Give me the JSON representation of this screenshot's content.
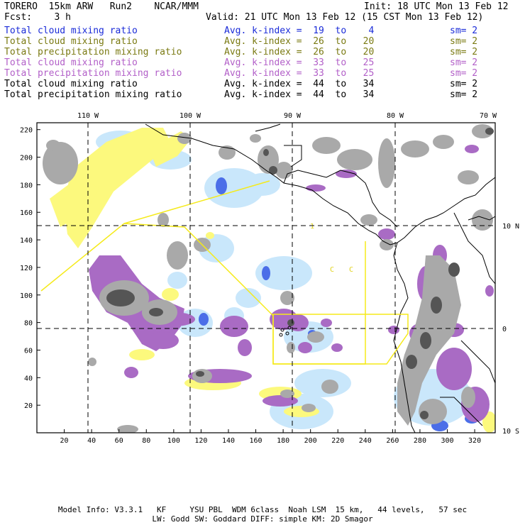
{
  "header": {
    "model_line": "TORERO  15km ARW   Run2    NCAR/MMM",
    "init_line": "Init: 18 UTC Mon 13 Feb 12",
    "fcst_line": "Fcst:    3 h",
    "valid_line": "Valid: 21 UTC Mon 13 Feb 12 (15 CST Mon 13 Feb 12)"
  },
  "legend": [
    {
      "field": "Total cloud mixing ratio",
      "kindex": "Avg. k-index =  19  to    4",
      "sm": "sm= 2",
      "color": "#1a2bd8"
    },
    {
      "field": "Total cloud mixing ratio",
      "kindex": "Avg. k-index =  26  to   20",
      "sm": "sm= 2",
      "color": "#7a7a12"
    },
    {
      "field": "Total precipitation mixing ratio",
      "kindex": "Avg. k-index =  26  to   20",
      "sm": "sm= 2",
      "color": "#7a7a12"
    },
    {
      "field": "Total cloud mixing ratio",
      "kindex": "Avg. k-index =  33  to   25",
      "sm": "sm= 2",
      "color": "#b25fc8"
    },
    {
      "field": "Total precipitation mixing ratio",
      "kindex": "Avg. k-index =  33  to   25",
      "sm": "sm= 2",
      "color": "#b25fc8"
    },
    {
      "field": "Total cloud mixing ratio",
      "kindex": "Avg. k-index =  44  to   34",
      "sm": "sm= 2",
      "color": "#000000"
    },
    {
      "field": "Total precipitation mixing ratio",
      "kindex": "Avg. k-index =  44  to   34",
      "sm": "sm= 2",
      "color": "#000000"
    }
  ],
  "map": {
    "lon_labels": [
      "110 W",
      "100 W",
      "90 W",
      "80 W",
      "70 W"
    ],
    "lat_labels": [
      "10 N",
      "0",
      "10 S"
    ],
    "x_ticks": [
      "20",
      "40",
      "60",
      "80",
      "100",
      "120",
      "140",
      "160",
      "180",
      "200",
      "220",
      "240",
      "260",
      "280",
      "300",
      "320"
    ],
    "y_ticks": [
      "20",
      "40",
      "60",
      "80",
      "100",
      "120",
      "140",
      "160",
      "180",
      "200",
      "220"
    ],
    "x_range": [
      0,
      335
    ],
    "y_range": [
      0,
      225
    ],
    "colors": {
      "gray_cloud": "#a9a9a9",
      "dark_gray": "#555555",
      "light_blue": "#c7e6fb",
      "blue": "#3f5fe0",
      "yellow": "#fcf97d",
      "violet": "#a96bc4",
      "domain_line": "#f5ea1a"
    }
  },
  "footer": {
    "line1": "Model Info: V3.3.1   KF     YSU PBL  WDM 6class  Noah LSM  15 km,   44 levels,   57 sec",
    "line2": "LW: Godd SW: Goddard DIFF: simple KM: 2D Smagor"
  }
}
